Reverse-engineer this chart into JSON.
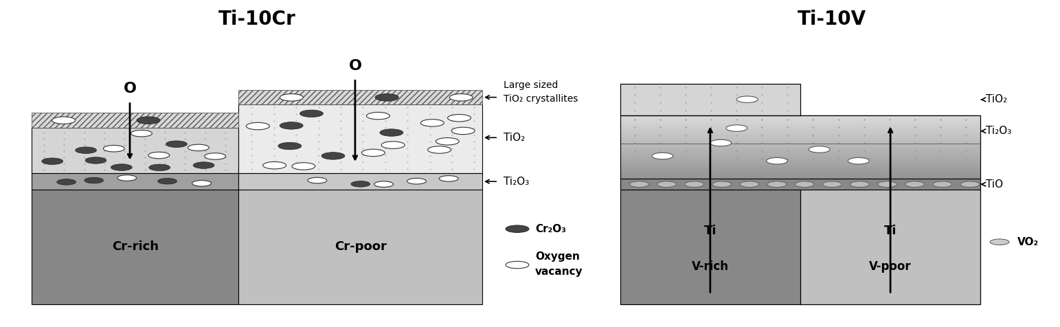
{
  "title_left": "Ti-10Cr",
  "title_right": "Ti-10V",
  "title_fontsize": 20,
  "bg_color": "#ffffff",
  "labels_cr": {
    "large_tio2_line1": "Large sized",
    "large_tio2_line2": "TiO₂ crystallites",
    "tio2": "TiO₂",
    "ti2o3": "Ti₂O₃",
    "cr2o3": "Cr₂O₃",
    "oxy_vac_line1": "Oxygen",
    "oxy_vac_line2": "vacancy",
    "cr_rich": "Cr-rich",
    "cr_poor": "Cr-poor"
  },
  "labels_v": {
    "tio2": "TiO₂",
    "ti2o3": "Ti₂O₃",
    "tio": "TiO",
    "vo2": "VO₂",
    "ti": "Ti",
    "v_rich": "V-rich",
    "v_poor": "V-poor"
  },
  "O_label": "O"
}
